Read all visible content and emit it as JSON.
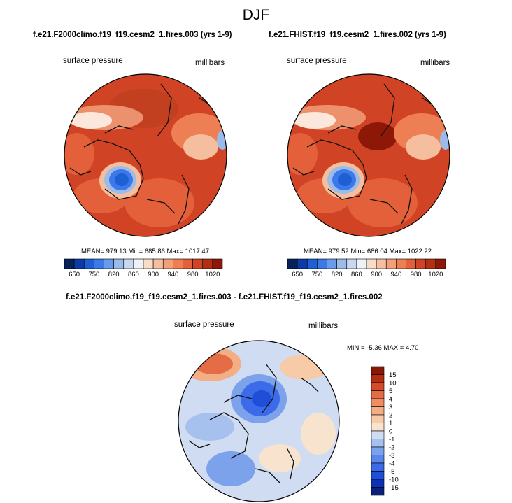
{
  "title": "DJF",
  "panel_left": {
    "case": "f.e21.F2000climo.f19_f19.cesm2_1.fires.003 (yrs 1-9)",
    "field": "surface pressure",
    "units": "millibars",
    "stats": "MEAN= 979.13  Min= 685.86  Max= 1017.47"
  },
  "panel_right": {
    "case": "f.e21.FHIST.f19_f19.cesm2_1.fires.002 (yrs 1-9)",
    "field": "surface pressure",
    "units": "millibars",
    "stats": "MEAN= 979.52  Min= 686.04  Max= 1022.22"
  },
  "panel_diff": {
    "title": "f.e21.F2000climo.f19_f19.cesm2_1.fires.003 - f.e21.FHIST.f19_f19.cesm2_1.fires.002",
    "field": "surface pressure",
    "units": "millibars",
    "minmax": "MIN =  -5.36 MAX =   4.70"
  },
  "colors": {
    "abs_scale": [
      "#08215a",
      "#0a3ba8",
      "#1f5fd6",
      "#3b78e8",
      "#6a9ae8",
      "#9bbcea",
      "#c7d8ef",
      "#eef2f6",
      "#f8dcc8",
      "#f5bf9f",
      "#f3a07a",
      "#ee7f55",
      "#e3603a",
      "#d04425",
      "#b42e14",
      "#8e1808"
    ],
    "diff_scale": [
      "#08217a",
      "#0b32b5",
      "#1f4fd6",
      "#3b6be8",
      "#5b86ea",
      "#7da2ec",
      "#a7c1ee",
      "#cfdcf2",
      "#f8e3cf",
      "#f7cba8",
      "#f4ae84",
      "#f08e63",
      "#e46d45",
      "#d24b2a",
      "#b32d12",
      "#8a1706"
    ]
  },
  "chart_data": [
    {
      "type": "heatmap",
      "projection": "north-polar-stereographic",
      "title": "f.e21.F2000climo.f19_f19.cesm2_1.fires.003 (yrs 1-9)",
      "variable": "surface pressure",
      "units": "millibars",
      "mean": 979.13,
      "min": 685.86,
      "max": 1017.47,
      "colorbar_levels": [
        650,
        700,
        750,
        800,
        820,
        840,
        860,
        880,
        900,
        920,
        940,
        960,
        980,
        1000,
        1020
      ],
      "colorbar_labels": [
        "650",
        "750",
        "820",
        "860",
        "900",
        "940",
        "980",
        "1020"
      ]
    },
    {
      "type": "heatmap",
      "projection": "north-polar-stereographic",
      "title": "f.e21.FHIST.f19_f19.cesm2_1.fires.002 (yrs 1-9)",
      "variable": "surface pressure",
      "units": "millibars",
      "mean": 979.52,
      "min": 686.04,
      "max": 1022.22,
      "colorbar_levels": [
        650,
        700,
        750,
        800,
        820,
        840,
        860,
        880,
        900,
        920,
        940,
        960,
        980,
        1000,
        1020
      ],
      "colorbar_labels": [
        "650",
        "750",
        "820",
        "860",
        "900",
        "940",
        "980",
        "1020"
      ]
    },
    {
      "type": "heatmap",
      "projection": "north-polar-stereographic",
      "title": "f.e21.F2000climo.f19_f19.cesm2_1.fires.003 - f.e21.FHIST.f19_f19.cesm2_1.fires.002",
      "variable": "surface pressure",
      "units": "millibars",
      "min": -5.36,
      "max": 4.7,
      "colorbar_levels": [
        -15,
        -10,
        -5,
        -4,
        -3,
        -2,
        -1,
        0,
        1,
        2,
        3,
        4,
        5,
        10,
        15
      ],
      "colorbar_labels": [
        "15",
        "10",
        "5",
        "4",
        "3",
        "2",
        "1",
        "0",
        "-1",
        "-2",
        "-3",
        "-4",
        "-5",
        "-10",
        "-15"
      ]
    }
  ]
}
